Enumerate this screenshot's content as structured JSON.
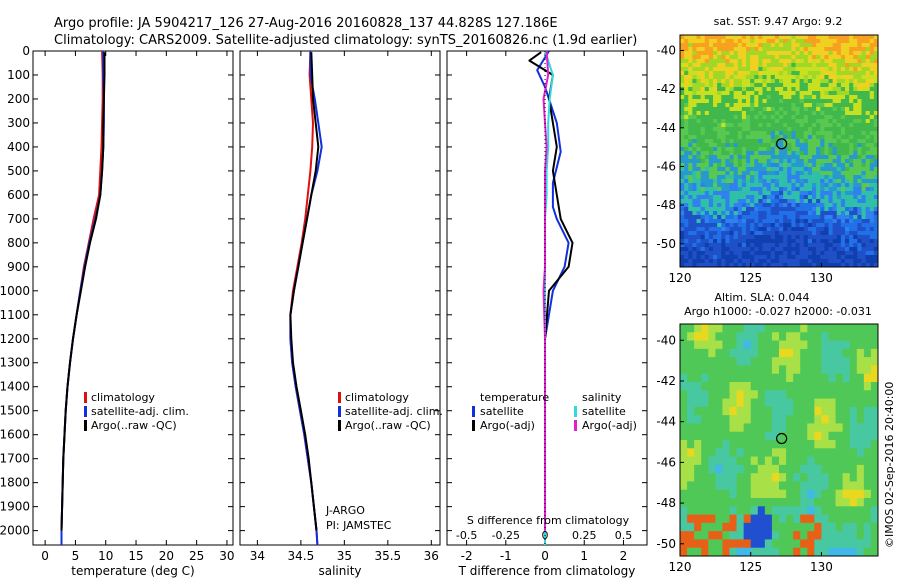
{
  "header": {
    "line1": "Argo profile: JA 5904217_126 27-Aug-2016 20160828_137 44.828S 127.186E",
    "line2": "Climatology: CARS2009. Satellite-adjusted climatology: synTS_20160826.nc (1.9d earlier)"
  },
  "colors": {
    "climatology": "#e01010",
    "satellite": "#1030e0",
    "argo": "#000000",
    "sat_s": "#30d8e0",
    "argo_s": "#e020d0"
  },
  "watermark": "©IMOS 02-Sep-2016 20:40:00",
  "chart_data": [
    {
      "type": "line",
      "panel": "temperature",
      "xlabel": "temperature (deg C)",
      "ylabel": "",
      "xlim": [
        -2,
        31
      ],
      "ylim": [
        2060,
        0
      ],
      "xticks": [
        "0",
        "5",
        "10",
        "15",
        "20",
        "25",
        "30"
      ],
      "yticks": [
        "0",
        "100",
        "200",
        "300",
        "400",
        "500",
        "600",
        "700",
        "800",
        "900",
        "1000",
        "1100",
        "1200",
        "1300",
        "1400",
        "1500",
        "1600",
        "1700",
        "1800",
        "1900",
        "2000"
      ],
      "legend": [
        "climatology",
        "satellite-adj. clim.",
        "Argo(..raw -QC)"
      ],
      "series": [
        {
          "name": "climatology",
          "color": "climatology",
          "points": [
            [
              9.4,
              0
            ],
            [
              9.5,
              100
            ],
            [
              9.5,
              200
            ],
            [
              9.4,
              300
            ],
            [
              9.3,
              400
            ],
            [
              9.1,
              500
            ],
            [
              8.9,
              600
            ],
            [
              8.0,
              700
            ],
            [
              7.2,
              800
            ],
            [
              6.4,
              900
            ],
            [
              5.8,
              1000
            ],
            [
              5.2,
              1100
            ],
            [
              4.6,
              1200
            ],
            [
              4.1,
              1300
            ],
            [
              3.7,
              1400
            ],
            [
              3.4,
              1500
            ],
            [
              3.2,
              1600
            ],
            [
              3.0,
              1700
            ],
            [
              2.9,
              1800
            ],
            [
              2.8,
              1900
            ],
            [
              2.7,
              2000
            ],
            [
              2.7,
              2060
            ]
          ]
        },
        {
          "name": "satellite-adj. clim.",
          "color": "satellite",
          "points": [
            [
              9.6,
              0
            ],
            [
              9.6,
              100
            ],
            [
              9.7,
              200
            ],
            [
              9.7,
              300
            ],
            [
              9.6,
              400
            ],
            [
              9.4,
              500
            ],
            [
              9.1,
              600
            ],
            [
              8.3,
              700
            ],
            [
              7.3,
              800
            ],
            [
              6.5,
              900
            ],
            [
              5.8,
              1000
            ],
            [
              5.2,
              1100
            ],
            [
              4.6,
              1200
            ],
            [
              4.1,
              1300
            ],
            [
              3.7,
              1400
            ],
            [
              3.4,
              1500
            ],
            [
              3.2,
              1600
            ],
            [
              3.0,
              1700
            ],
            [
              2.9,
              1800
            ],
            [
              2.8,
              1900
            ],
            [
              2.7,
              2000
            ],
            [
              2.7,
              2060
            ]
          ]
        },
        {
          "name": "Argo(..raw -QC)",
          "color": "argo",
          "points": [
            [
              9.8,
              5
            ],
            [
              9.8,
              100
            ],
            [
              9.7,
              200
            ],
            [
              9.6,
              300
            ],
            [
              9.6,
              400
            ],
            [
              9.4,
              500
            ],
            [
              9.1,
              600
            ],
            [
              8.4,
              700
            ],
            [
              7.4,
              800
            ],
            [
              6.6,
              900
            ],
            [
              5.9,
              1000
            ],
            [
              5.2,
              1100
            ],
            [
              4.6,
              1200
            ],
            [
              4.1,
              1300
            ],
            [
              3.7,
              1400
            ],
            [
              3.4,
              1500
            ],
            [
              3.2,
              1600
            ],
            [
              3.0,
              1700
            ],
            [
              2.9,
              1800
            ],
            [
              2.8,
              1900
            ],
            [
              2.7,
              2000
            ]
          ]
        }
      ]
    },
    {
      "type": "line",
      "panel": "salinity",
      "xlabel": "salinity",
      "xlim": [
        33.8,
        36.1
      ],
      "ylim": [
        2060,
        0
      ],
      "xticks": [
        "34",
        "34.5",
        "35",
        "35.5",
        "36"
      ],
      "legend": [
        "climatology",
        "satellite-adj. clim.",
        "Argo(..raw -QC)"
      ],
      "annotation": [
        "J-ARGO",
        "PI: JAMSTEC"
      ],
      "series": [
        {
          "name": "climatology",
          "color": "climatology",
          "points": [
            [
              34.61,
              0
            ],
            [
              34.6,
              100
            ],
            [
              34.62,
              200
            ],
            [
              34.64,
              300
            ],
            [
              34.63,
              400
            ],
            [
              34.61,
              500
            ],
            [
              34.58,
              600
            ],
            [
              34.55,
              700
            ],
            [
              34.51,
              800
            ],
            [
              34.46,
              900
            ],
            [
              34.41,
              1000
            ],
            [
              34.38,
              1100
            ],
            [
              34.38,
              1200
            ],
            [
              34.4,
              1300
            ],
            [
              34.44,
              1400
            ],
            [
              34.49,
              1500
            ],
            [
              34.54,
              1600
            ],
            [
              34.58,
              1700
            ],
            [
              34.62,
              1800
            ],
            [
              34.65,
              1900
            ],
            [
              34.68,
              2000
            ],
            [
              34.69,
              2060
            ]
          ]
        },
        {
          "name": "satellite-adj. clim.",
          "color": "satellite",
          "points": [
            [
              34.61,
              0
            ],
            [
              34.61,
              100
            ],
            [
              34.66,
              200
            ],
            [
              34.7,
              300
            ],
            [
              34.74,
              400
            ],
            [
              34.69,
              500
            ],
            [
              34.62,
              600
            ],
            [
              34.57,
              700
            ],
            [
              34.52,
              800
            ],
            [
              34.47,
              900
            ],
            [
              34.42,
              1000
            ],
            [
              34.38,
              1100
            ],
            [
              34.38,
              1200
            ],
            [
              34.4,
              1300
            ],
            [
              34.44,
              1400
            ],
            [
              34.49,
              1500
            ],
            [
              34.54,
              1600
            ],
            [
              34.58,
              1700
            ],
            [
              34.62,
              1800
            ],
            [
              34.65,
              1900
            ],
            [
              34.68,
              2000
            ],
            [
              34.69,
              2060
            ]
          ]
        },
        {
          "name": "Argo(..raw -QC)",
          "color": "argo",
          "points": [
            [
              34.62,
              5
            ],
            [
              34.63,
              100
            ],
            [
              34.64,
              200
            ],
            [
              34.67,
              300
            ],
            [
              34.7,
              400
            ],
            [
              34.67,
              500
            ],
            [
              34.62,
              600
            ],
            [
              34.57,
              700
            ],
            [
              34.52,
              800
            ],
            [
              34.47,
              900
            ],
            [
              34.42,
              1000
            ],
            [
              34.38,
              1100
            ],
            [
              34.39,
              1200
            ],
            [
              34.41,
              1300
            ],
            [
              34.45,
              1400
            ],
            [
              34.5,
              1500
            ],
            [
              34.55,
              1600
            ],
            [
              34.59,
              1700
            ],
            [
              34.62,
              1800
            ],
            [
              34.65,
              1900
            ],
            [
              34.68,
              2000
            ]
          ]
        }
      ]
    },
    {
      "type": "line",
      "panel": "differences",
      "xlabel": "T difference from climatology",
      "xlabel_top": "S difference from climatology",
      "xlim": [
        -2.5,
        2.6
      ],
      "ylim": [
        2060,
        0
      ],
      "xticks": [
        "-2",
        "-1",
        "0",
        "1",
        "2"
      ],
      "xticks_s": [
        "-0.5",
        "-0.25",
        "0",
        "0.25",
        "0.5"
      ],
      "legend_t_title": "temperature",
      "legend_s_title": "salinity",
      "legend": [
        "satellite",
        "Argo(-adj)",
        "satellite",
        "Argo(-adj)"
      ],
      "series": [
        {
          "name": "satellite",
          "color": "satellite",
          "points": [
            [
              0.1,
              0
            ],
            [
              -0.2,
              80
            ],
            [
              0.0,
              150
            ],
            [
              0.2,
              250
            ],
            [
              0.3,
              300
            ],
            [
              0.4,
              420
            ],
            [
              0.2,
              550
            ],
            [
              0.2,
              650
            ],
            [
              0.3,
              700
            ],
            [
              0.6,
              800
            ],
            [
              0.5,
              900
            ],
            [
              0.2,
              1000
            ],
            [
              0.0,
              1200
            ],
            [
              0.0,
              1500
            ],
            [
              0.0,
              2060
            ]
          ]
        },
        {
          "name": "Argo(-adj)",
          "color": "argo",
          "points": [
            [
              -0.1,
              5
            ],
            [
              -0.4,
              40
            ],
            [
              0.2,
              100
            ],
            [
              0.1,
              200
            ],
            [
              0.2,
              300
            ],
            [
              0.3,
              400
            ],
            [
              0.2,
              500
            ],
            [
              0.3,
              600
            ],
            [
              0.4,
              700
            ],
            [
              0.7,
              800
            ],
            [
              0.6,
              900
            ],
            [
              0.1,
              1000
            ],
            [
              0.0,
              1200
            ],
            [
              0.0,
              1500
            ],
            [
              0.0,
              2000
            ]
          ]
        },
        {
          "name": "satellite",
          "color": "sat_s",
          "points": [
            [
              0.0,
              0
            ],
            [
              0.05,
              100
            ],
            [
              0.03,
              200
            ],
            [
              0.02,
              300
            ],
            [
              0.02,
              400
            ],
            [
              0.01,
              500
            ],
            [
              0.01,
              600
            ],
            [
              0.0,
              700
            ],
            [
              0.0,
              800
            ],
            [
              0.0,
              900
            ],
            [
              0.0,
              1000
            ],
            [
              0.0,
              1200
            ],
            [
              0.0,
              1500
            ],
            [
              0.0,
              2060
            ]
          ]
        },
        {
          "name": "Argo(-adj)",
          "color": "argo_s",
          "points": [
            [
              0.01,
              0
            ],
            [
              0.02,
              100
            ],
            [
              -0.01,
              200
            ],
            [
              0.0,
              300
            ],
            [
              0.01,
              400
            ],
            [
              0.0,
              500
            ],
            [
              0.0,
              600
            ],
            [
              0.0,
              700
            ],
            [
              0.0,
              800
            ],
            [
              0.0,
              900
            ],
            [
              -0.01,
              1000
            ],
            [
              0.0,
              1200
            ],
            [
              0.0,
              1500
            ],
            [
              0.0,
              2000
            ]
          ]
        }
      ]
    },
    {
      "type": "heatmap",
      "panel": "sst-map",
      "title": "sat. SST: 9.47 Argo: 9.2",
      "xticks": [
        "120",
        "125",
        "130"
      ],
      "yticks": [
        "-40",
        "-42",
        "-44",
        "-46",
        "-48",
        "-50"
      ],
      "xlim": [
        120,
        134
      ],
      "ylim": [
        -51.2,
        -39.2
      ],
      "marker": [
        127.186,
        -44.828
      ]
    },
    {
      "type": "heatmap",
      "panel": "sla-map",
      "title": "Altim. SLA: 0.044",
      "subtitle": "Argo h1000: -0.027 h2000: -0.031",
      "xticks": [
        "120",
        "125",
        "130"
      ],
      "yticks": [
        "-40",
        "-42",
        "-44",
        "-46",
        "-48",
        "-50"
      ],
      "xlim": [
        120,
        134
      ],
      "ylim": [
        -50.6,
        -39.2
      ],
      "marker": [
        127.186,
        -44.828
      ]
    }
  ]
}
